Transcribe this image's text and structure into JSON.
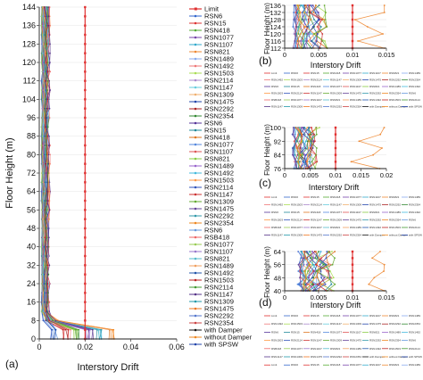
{
  "chart_data": [
    {
      "panel": "(a)",
      "type": "line",
      "xlabel": "Interstory Drift",
      "ylabel": "Floor Height (m)",
      "xlim": [
        0,
        0.06
      ],
      "ylim": [
        0,
        144
      ],
      "xticks": [
        0,
        0.02,
        0.04,
        0.06
      ],
      "yticks": [
        0,
        8,
        16,
        24,
        32,
        40,
        48,
        56,
        64,
        72,
        80,
        88,
        96,
        104,
        112,
        120,
        128,
        136,
        144
      ],
      "limit": 0.02,
      "legend_position": "right",
      "legend": [
        {
          "name": "Limit",
          "color": "#e03030",
          "marker": "dash"
        },
        {
          "name": "RSN6",
          "color": "#3366cc",
          "marker": "line"
        },
        {
          "name": "RSN15",
          "color": "#dd3333",
          "marker": "line"
        },
        {
          "name": "RSN418",
          "color": "#55aa33",
          "marker": "line"
        },
        {
          "name": "RSN1077",
          "color": "#7744aa",
          "marker": "line"
        },
        {
          "name": "RSN1107",
          "color": "#33aacc",
          "marker": "line"
        },
        {
          "name": "RSN821",
          "color": "#ee8833",
          "marker": "line"
        },
        {
          "name": "RSN1489",
          "color": "#88aaee",
          "marker": "line"
        },
        {
          "name": "RSN1492",
          "color": "#ee7777",
          "marker": "line"
        },
        {
          "name": "RSN1503",
          "color": "#aadd55",
          "marker": "line"
        },
        {
          "name": "RSN2114",
          "color": "#aa88cc",
          "marker": "line"
        },
        {
          "name": "RSN1147",
          "color": "#66ccdd",
          "marker": "line"
        },
        {
          "name": "RSN1309",
          "color": "#f0b070",
          "marker": "line"
        },
        {
          "name": "RSN1475",
          "color": "#2244aa",
          "marker": "line"
        },
        {
          "name": "RSN2292",
          "color": "#aa2222",
          "marker": "line"
        },
        {
          "name": "RSN2354",
          "color": "#338833",
          "marker": "line"
        },
        {
          "name": "RSN6",
          "color": "#553399",
          "marker": "line"
        },
        {
          "name": "RSN15",
          "color": "#228899",
          "marker": "line"
        },
        {
          "name": "RSN418",
          "color": "#dd7722",
          "marker": "line"
        },
        {
          "name": "RSN1077",
          "color": "#5588dd",
          "marker": "line"
        },
        {
          "name": "RSN1107",
          "color": "#dd5555",
          "marker": "line"
        },
        {
          "name": "RSN821",
          "color": "#88cc44",
          "marker": "line"
        },
        {
          "name": "RSN1489",
          "color": "#9966cc",
          "marker": "line"
        },
        {
          "name": "RSN1492",
          "color": "#44bbdd",
          "marker": "line"
        },
        {
          "name": "RSN1503",
          "color": "#ff9944",
          "marker": "line"
        },
        {
          "name": "RSN2114",
          "color": "#3355bb",
          "marker": "line"
        },
        {
          "name": "RSN1147",
          "color": "#cc3333",
          "marker": "line"
        },
        {
          "name": "RSN1309",
          "color": "#66aa33",
          "marker": "line"
        },
        {
          "name": "RSN1475",
          "color": "#664499",
          "marker": "line"
        },
        {
          "name": "RSN2292",
          "color": "#3399aa",
          "marker": "line"
        },
        {
          "name": "RSN2354",
          "color": "#ee8822",
          "marker": "line"
        },
        {
          "name": "RSN6",
          "color": "#6699dd",
          "marker": "line"
        },
        {
          "name": "RSB418",
          "color": "#ee6666",
          "marker": "line"
        },
        {
          "name": "RSN1077",
          "color": "#99cc55",
          "marker": "line"
        },
        {
          "name": "RSN1107",
          "color": "#9977cc",
          "marker": "line"
        },
        {
          "name": "RSN821",
          "color": "#55bbcc",
          "marker": "line"
        },
        {
          "name": "RSN1489",
          "color": "#f0a060",
          "marker": "line"
        },
        {
          "name": "RSN1492",
          "color": "#2255aa",
          "marker": "line"
        },
        {
          "name": "RSN1503",
          "color": "#bb2222",
          "marker": "line"
        },
        {
          "name": "RSN2114",
          "color": "#449933",
          "marker": "line"
        },
        {
          "name": "RSN1147",
          "color": "#553388",
          "marker": "line"
        },
        {
          "name": "RSN1309",
          "color": "#2299aa",
          "marker": "line"
        },
        {
          "name": "RSN1475",
          "color": "#ee7722",
          "marker": "line"
        },
        {
          "name": "RSN2292",
          "color": "#5577cc",
          "marker": "line"
        },
        {
          "name": "RSN2354",
          "color": "#cc4444",
          "marker": "line"
        },
        {
          "name": "with Damper",
          "color": "#111111",
          "marker": "line"
        },
        {
          "name": "without Damper",
          "color": "#ee8822",
          "marker": "line"
        },
        {
          "name": "with SPSW",
          "color": "#2244aa",
          "marker": "line"
        }
      ]
    },
    {
      "panel": "(b)",
      "type": "line",
      "xlabel": "Interstory Drift",
      "ylabel": "Floor Height (m)",
      "xlim": [
        0,
        0.015
      ],
      "ylim": [
        112,
        136
      ],
      "xticks": [
        0,
        0.005,
        0.01,
        0.015
      ],
      "yticks": [
        112,
        116,
        120,
        124,
        128,
        132,
        136
      ],
      "limit": 0.01
    },
    {
      "panel": "(c)",
      "type": "line",
      "xlabel": "Interstory Drift",
      "ylabel": "Floor Height (m)",
      "xlim": [
        0,
        0.02
      ],
      "ylim": [
        76,
        100
      ],
      "xticks": [
        0,
        0.005,
        0.01,
        0.015,
        0.02
      ],
      "yticks": [
        76,
        84,
        92,
        100
      ],
      "limit": 0.01
    },
    {
      "panel": "(d)",
      "type": "line",
      "xlabel": "Interstory Drift",
      "ylabel": "Floor Height (m)",
      "xlim": [
        0,
        0.015
      ],
      "ylim": [
        40,
        64
      ],
      "xticks": [
        0,
        0.005,
        0.01,
        0.015
      ],
      "yticks": [
        40,
        48,
        56,
        64
      ],
      "limit": 0.01
    }
  ]
}
